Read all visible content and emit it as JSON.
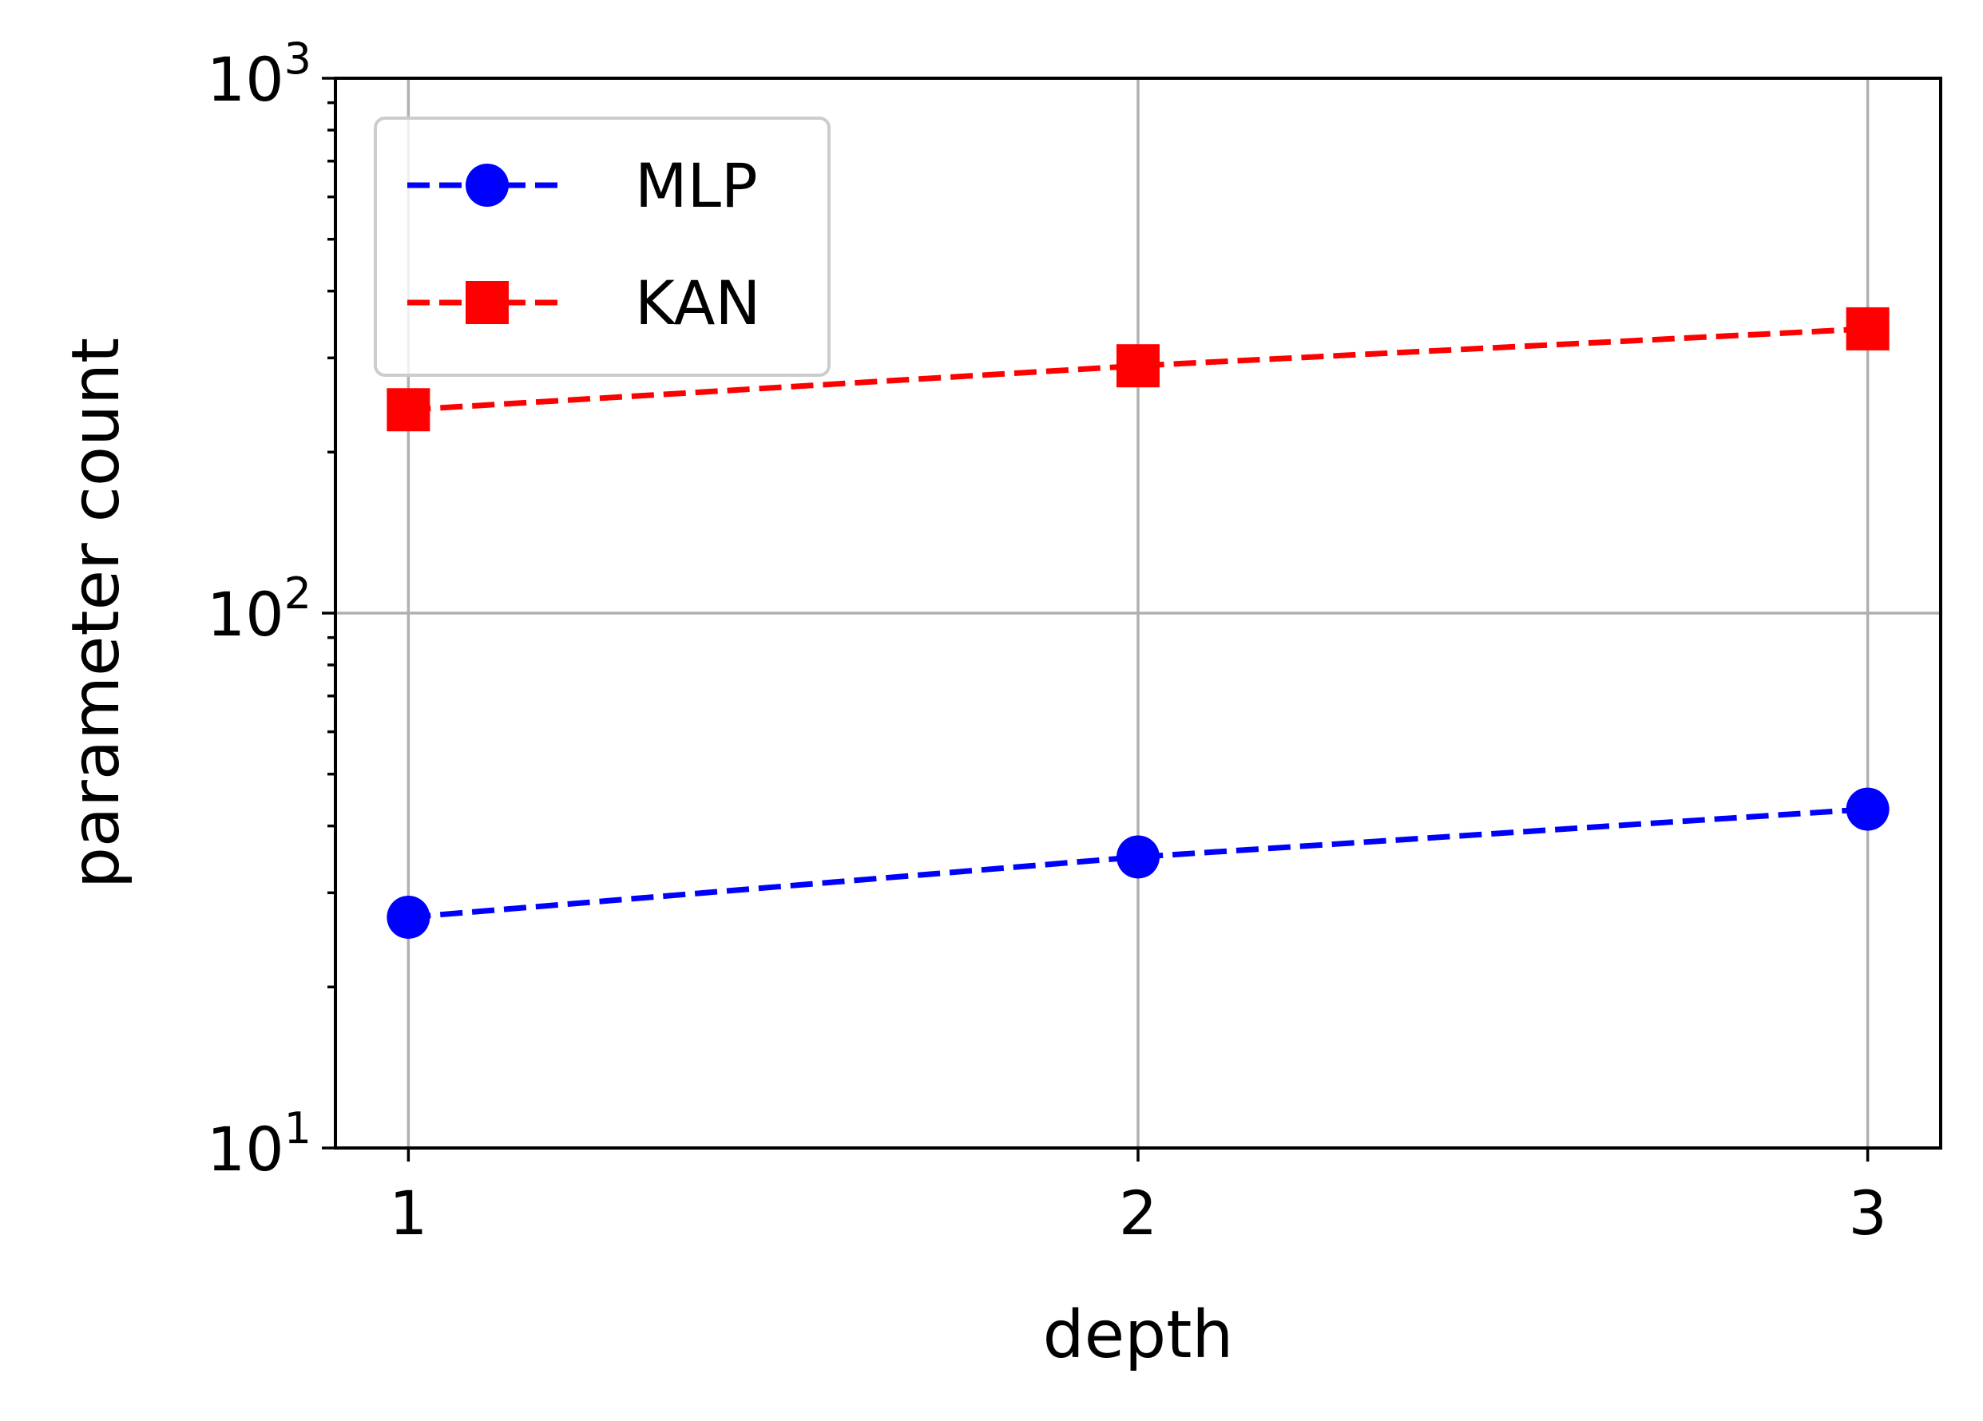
{
  "chart_data": {
    "type": "line",
    "title": "",
    "xlabel": "depth",
    "ylabel": "parameter count",
    "x": [
      1,
      2,
      3
    ],
    "x_ticks": [
      "1",
      "2",
      "3"
    ],
    "y_scale": "log",
    "ylim": [
      10,
      1000
    ],
    "y_ticks": [
      {
        "value": 10,
        "base": "10",
        "exp": "1"
      },
      {
        "value": 100,
        "base": "10",
        "exp": "2"
      },
      {
        "value": 1000,
        "base": "10",
        "exp": "3"
      }
    ],
    "grid": true,
    "legend_position": "top-left",
    "series": [
      {
        "name": "MLP",
        "values": [
          27,
          35,
          43
        ],
        "color": "#0000ff",
        "marker": "circle",
        "line_style": "dashed"
      },
      {
        "name": "KAN",
        "values": [
          240,
          290,
          340
        ],
        "color": "#ff0000",
        "marker": "square",
        "line_style": "dashed"
      }
    ]
  }
}
